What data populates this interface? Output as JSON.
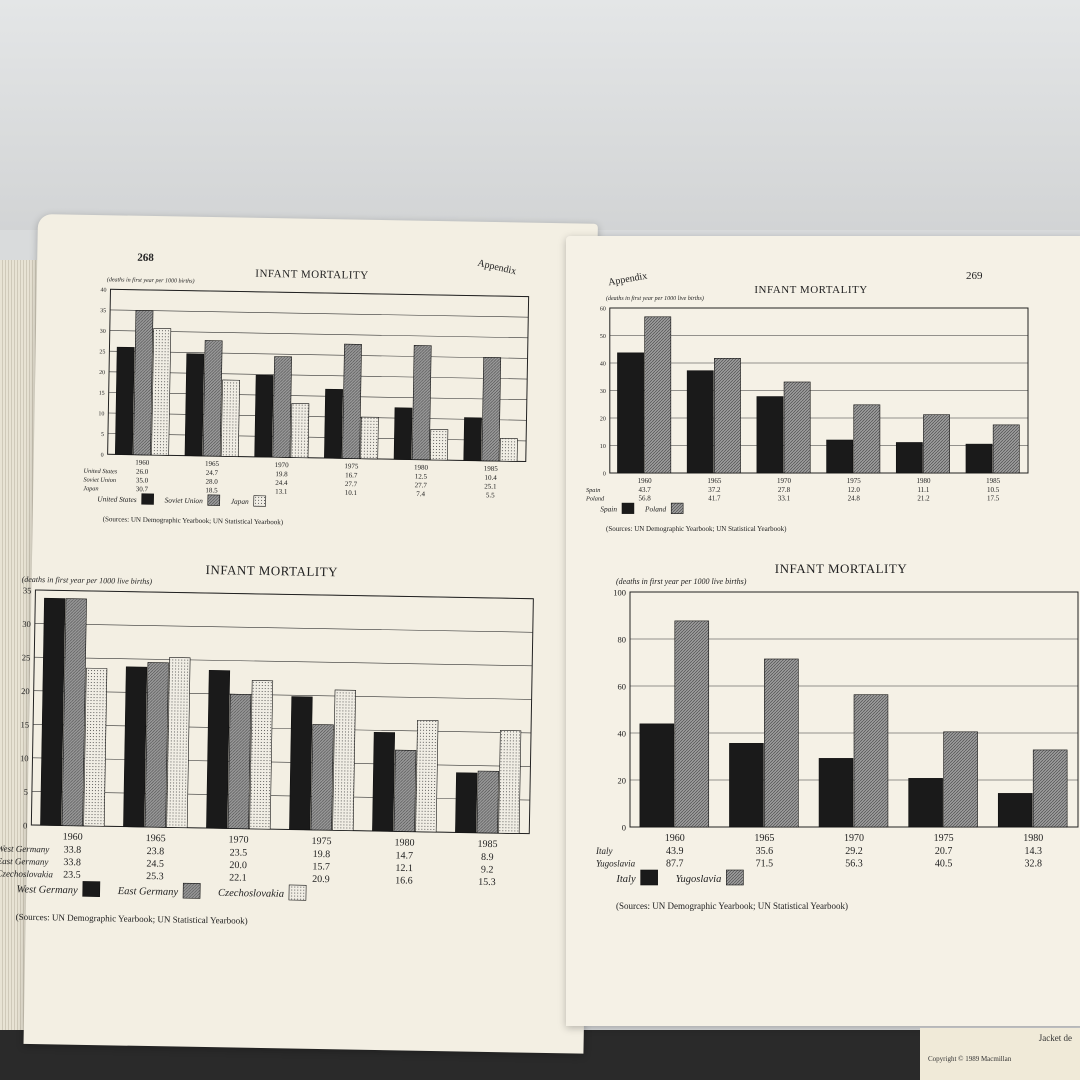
{
  "left_page": {
    "page_number": "268",
    "running_head": "Appendix"
  },
  "right_page": {
    "page_number": "269",
    "running_head": "Appendix"
  },
  "jacket_text": {
    "line1": "Jacket de",
    "line2": "Copyright © 1989 Macmillan"
  },
  "colors": {
    "paper": "#f3efe3",
    "series_black": "#1a1a1a",
    "series_gray": "#8f8f8f",
    "series_dotted": "#e6e3da"
  },
  "chart_data": [
    {
      "type": "bar",
      "title": "INFANT MORTALITY",
      "ylabel": "(deaths in first year per 1000 births)",
      "categories": [
        "1960",
        "1965",
        "1970",
        "1975",
        "1980",
        "1985"
      ],
      "ylim": [
        0,
        40
      ],
      "yticks": [
        0,
        5,
        10,
        15,
        20,
        25,
        30,
        35,
        40
      ],
      "grid": true,
      "series": [
        {
          "name": "United States",
          "values": [
            26.0,
            24.7,
            19.8,
            16.7,
            12.5,
            10.4
          ],
          "fill": "black"
        },
        {
          "name": "Soviet Union",
          "values": [
            35.0,
            28.0,
            24.4,
            27.7,
            27.7,
            25.1
          ],
          "fill": "gray"
        },
        {
          "name": "Japan",
          "values": [
            30.7,
            18.5,
            13.1,
            10.1,
            7.4,
            5.5
          ],
          "fill": "dotted"
        }
      ],
      "legend": "bottom",
      "source": "(Sources: UN Demographic Yearbook; UN Statistical Yearbook)"
    },
    {
      "type": "bar",
      "title": "INFANT MORTALITY",
      "ylabel": "(deaths in first year per 1000 live births)",
      "categories": [
        "1960",
        "1965",
        "1970",
        "1975",
        "1980",
        "1985"
      ],
      "ylim": [
        0,
        35
      ],
      "yticks": [
        0,
        5,
        10,
        15,
        20,
        25,
        30,
        35
      ],
      "grid": true,
      "series": [
        {
          "name": "West Germany",
          "values": [
            33.8,
            23.8,
            23.5,
            19.8,
            14.7,
            8.9
          ],
          "fill": "black"
        },
        {
          "name": "East Germany",
          "values": [
            33.8,
            24.5,
            20.0,
            15.7,
            12.1,
            9.2
          ],
          "fill": "gray"
        },
        {
          "name": "Czechoslovakia",
          "values": [
            23.5,
            25.3,
            22.1,
            20.9,
            16.6,
            15.3
          ],
          "fill": "dotted"
        }
      ],
      "legend": "bottom",
      "source": "(Sources: UN Demographic Yearbook; UN Statistical Yearbook)"
    },
    {
      "type": "bar",
      "title": "INFANT MORTALITY",
      "ylabel": "(deaths in first year per 1000 live births)",
      "categories": [
        "1960",
        "1965",
        "1970",
        "1975",
        "1980",
        "1985"
      ],
      "ylim": [
        0,
        60
      ],
      "yticks": [
        0,
        10,
        20,
        30,
        40,
        50,
        60
      ],
      "grid": true,
      "series": [
        {
          "name": "Spain",
          "values": [
            43.7,
            37.2,
            27.8,
            12.0,
            11.1,
            10.5
          ],
          "fill": "black"
        },
        {
          "name": "Poland",
          "values": [
            56.8,
            41.7,
            33.1,
            24.8,
            21.2,
            17.5
          ],
          "fill": "gray"
        }
      ],
      "legend": "bottom",
      "source": "(Sources: UN Demographic Yearbook; UN Statistical Yearbook)"
    },
    {
      "type": "bar",
      "title": "INFANT MORTALITY",
      "ylabel": "(deaths in first year per 1000 live births)",
      "categories": [
        "1960",
        "1965",
        "1970",
        "1975",
        "1980"
      ],
      "ylim": [
        0,
        100
      ],
      "yticks": [
        0,
        20,
        40,
        60,
        80,
        100
      ],
      "grid": true,
      "series": [
        {
          "name": "Italy",
          "values": [
            43.9,
            35.6,
            29.2,
            20.7,
            14.3
          ],
          "fill": "black"
        },
        {
          "name": "Yugoslavia",
          "values": [
            87.7,
            71.5,
            56.3,
            40.5,
            32.8
          ],
          "fill": "gray"
        }
      ],
      "legend": "bottom",
      "source": "(Sources: UN Demographic Yearbook; UN Statistical Yearbook)"
    }
  ]
}
